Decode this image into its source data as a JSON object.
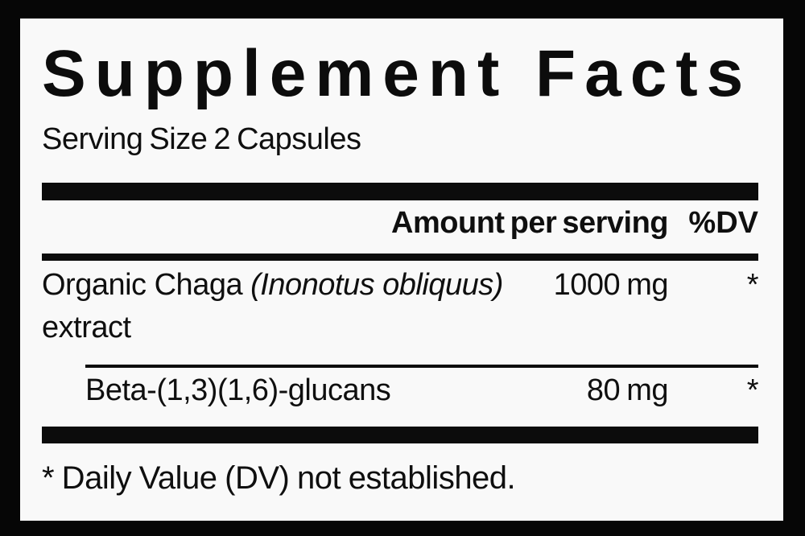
{
  "panel": {
    "title": "Supplement Facts",
    "serving_size": "Serving Size 2 Capsules",
    "columns": {
      "amount_header": "Amount per serving",
      "dv_header": "%DV"
    },
    "rows": [
      {
        "name_line1_regular": "Organic Chaga ",
        "name_line1_italic": "(Inonotus obliquus)",
        "name_line2": "extract",
        "amount": "1000 mg",
        "dv": "*"
      },
      {
        "name": "Beta-(1,3)(1,6)-glucans",
        "amount": "80 mg",
        "dv": "*"
      }
    ],
    "footnote": "* Daily Value (DV) not established.",
    "colors": {
      "ink": "#0c0c0c",
      "paper": "#f9f9f9",
      "frame": "#060606"
    }
  }
}
